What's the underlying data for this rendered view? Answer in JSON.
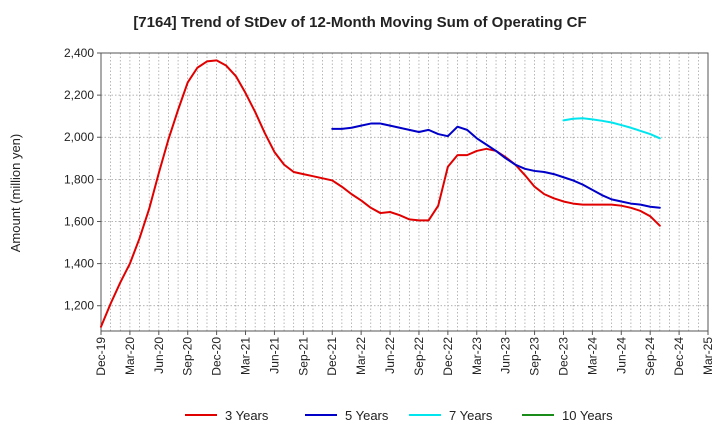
{
  "chart_data": {
    "type": "line",
    "title": "[7164]  Trend of StDev of 12-Month Moving Sum of Operating CF",
    "xlabel": "",
    "ylabel": "Amount (million yen)",
    "ylim": [
      1080,
      2400
    ],
    "yticks": [
      1200,
      1400,
      1600,
      1800,
      2000,
      2200,
      2400
    ],
    "ytick_labels": [
      "1,200",
      "1,400",
      "1,600",
      "1,800",
      "2,000",
      "2,200",
      "2,400"
    ],
    "x_tick_labels": [
      "Dec-19",
      "Mar-20",
      "Jun-20",
      "Sep-20",
      "Dec-20",
      "Mar-21",
      "Jun-21",
      "Sep-21",
      "Dec-21",
      "Mar-22",
      "Jun-22",
      "Sep-22",
      "Dec-22",
      "Mar-23",
      "Jun-23",
      "Sep-23",
      "Dec-23",
      "Mar-24",
      "Jun-24",
      "Sep-24",
      "Dec-24",
      "Mar-25"
    ],
    "x_range_months": [
      0,
      63
    ],
    "grid": true,
    "legend_position": "bottom",
    "series": [
      {
        "name": "3 Years",
        "color": "#e00000",
        "start_month": 0,
        "values": [
          1100,
          1210,
          1310,
          1400,
          1520,
          1660,
          1830,
          1990,
          2130,
          2260,
          2330,
          2360,
          2365,
          2340,
          2290,
          2210,
          2120,
          2020,
          1930,
          1870,
          1835,
          1825,
          1815,
          1805,
          1795,
          1765,
          1730,
          1700,
          1665,
          1640,
          1645,
          1630,
          1610,
          1605,
          1605,
          1675,
          1860,
          1915,
          1915,
          1935,
          1945,
          1935,
          1905,
          1870,
          1820,
          1765,
          1730,
          1710,
          1695,
          1685,
          1680,
          1680,
          1680,
          1680,
          1675,
          1665,
          1650,
          1625,
          1580
        ]
      },
      {
        "name": "5 Years",
        "color": "#0000c8",
        "start_month": 24,
        "values": [
          2040,
          2040,
          2045,
          2055,
          2065,
          2065,
          2055,
          2045,
          2035,
          2025,
          2035,
          2015,
          2005,
          2050,
          2035,
          1995,
          1965,
          1935,
          1900,
          1870,
          1850,
          1840,
          1835,
          1825,
          1810,
          1795,
          1775,
          1750,
          1725,
          1705,
          1695,
          1685,
          1680,
          1670,
          1665
        ]
      },
      {
        "name": "7 Years",
        "color": "#00e5ee",
        "start_month": 48,
        "values": [
          2080,
          2088,
          2090,
          2085,
          2078,
          2070,
          2058,
          2045,
          2030,
          2015,
          1995
        ]
      },
      {
        "name": "10 Years",
        "color": "#1a8c1a",
        "start_month": null,
        "values": []
      }
    ]
  }
}
